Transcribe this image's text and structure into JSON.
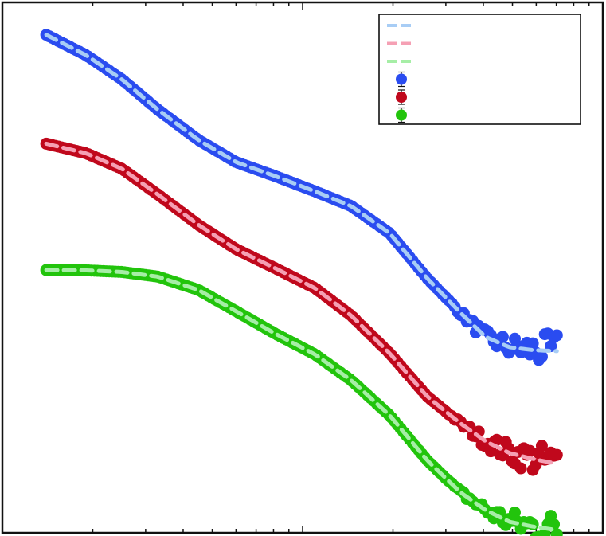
{
  "chart_data": {
    "type": "scatter",
    "title": "",
    "xlabel": "",
    "ylabel": "",
    "xscale": "log",
    "yscale": "log",
    "xlim": [
      0.001,
      0.1
    ],
    "ylim": [
      1e-07,
      10
    ],
    "grid": false,
    "legend": {
      "placement": "top-right",
      "entries": [
        {
          "marker": "dashed-line",
          "color": "#a8cdf5",
          "label": ""
        },
        {
          "marker": "dashed-line",
          "color": "#f5a0b4",
          "label": ""
        },
        {
          "marker": "dashed-line",
          "color": "#a6eea6",
          "label": ""
        },
        {
          "marker": "circle-errorbar",
          "color": "#2a4cf0",
          "label": ""
        },
        {
          "marker": "circle-errorbar",
          "color": "#c0081c",
          "label": ""
        },
        {
          "marker": "circle-errorbar",
          "color": "#22c40c",
          "label": ""
        }
      ]
    },
    "series": [
      {
        "color": "#2a4cf0",
        "fit_color": "#a8cdf5",
        "x": [
          0.0014,
          0.0019,
          0.0025,
          0.0033,
          0.0045,
          0.006,
          0.0081,
          0.011,
          0.0145,
          0.0195,
          0.026,
          0.0335,
          0.0407,
          0.0488,
          0.0586,
          0.0703
        ],
        "y": [
          3.24,
          1.6,
          0.69,
          0.24,
          0.084,
          0.039,
          0.024,
          0.0141,
          0.0085,
          0.0033,
          0.00069,
          0.00021,
          9e-05,
          6.3e-05,
          5.7e-05,
          5.5e-05
        ]
      },
      {
        "color": "#c0081c",
        "fit_color": "#f5a0b4",
        "x": [
          0.0014,
          0.0019,
          0.0025,
          0.0033,
          0.0045,
          0.006,
          0.0081,
          0.011,
          0.0145,
          0.0195,
          0.026,
          0.0335,
          0.0407,
          0.0488,
          0.0586,
          0.0703
        ],
        "y": [
          0.074,
          0.053,
          0.031,
          0.0126,
          0.0044,
          0.0019,
          0.00098,
          0.00049,
          0.00019,
          5.1e-05,
          1.14e-05,
          4.5e-06,
          2.4e-06,
          1.6e-06,
          1.3e-06,
          1.1e-06
        ]
      },
      {
        "color": "#22c40c",
        "fit_color": "#a6eea6",
        "x": [
          0.0014,
          0.0019,
          0.0025,
          0.0033,
          0.0045,
          0.006,
          0.0081,
          0.011,
          0.0145,
          0.0195,
          0.026,
          0.0335,
          0.0407,
          0.0488,
          0.0586,
          0.0703
        ],
        "y": [
          0.00092,
          0.00091,
          0.00086,
          0.00073,
          0.00046,
          0.00022,
          0.000101,
          4.9e-05,
          2.01e-05,
          5.9e-06,
          1.24e-06,
          4.1e-07,
          2.2e-07,
          1.47e-07,
          1.24e-07,
          1.1e-07
        ]
      }
    ]
  }
}
